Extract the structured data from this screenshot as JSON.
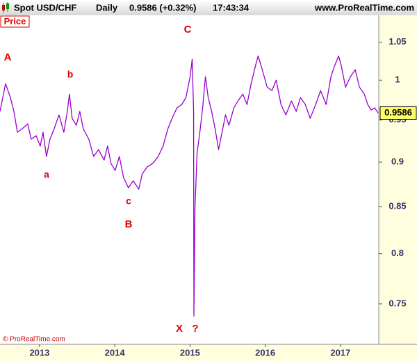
{
  "chart_data": {
    "type": "line",
    "header": {
      "symbol": "Spot USD/CHF",
      "period": "Daily",
      "quote": "0.9586 (+0.32%)",
      "time": "17:43:34",
      "site": "www.ProRealTime.com"
    },
    "panel_label": "Price",
    "copyright": "© ProRealTime.com",
    "annotations": [
      "A",
      "b",
      "a",
      "c",
      "B",
      "C",
      "X",
      "?"
    ],
    "color": "#9900cc",
    "log_scale": true,
    "x": [
      2012.474,
      2012.548,
      2012.612,
      2012.659,
      2012.705,
      2012.769,
      2012.843,
      2012.889,
      2012.954,
      2013.009,
      2013.046,
      2013.092,
      2013.138,
      2013.194,
      2013.258,
      2013.323,
      2013.369,
      2013.397,
      2013.433,
      2013.489,
      2013.535,
      2013.581,
      2013.655,
      2013.719,
      2013.784,
      2013.858,
      2013.904,
      2013.95,
      2014.005,
      2014.061,
      2014.116,
      2014.181,
      2014.245,
      2014.319,
      2014.365,
      2014.43,
      2014.504,
      2014.577,
      2014.642,
      2014.706,
      2014.762,
      2014.826,
      2014.891,
      2014.946,
      2015.002,
      2015.029,
      2015.048,
      2015.052,
      2015.066,
      2015.094,
      2015.131,
      2015.168,
      2015.205,
      2015.242,
      2015.288,
      2015.334,
      2015.38,
      2015.426,
      2015.472,
      2015.518,
      2015.583,
      2015.638,
      2015.703,
      2015.758,
      2015.813,
      2015.869,
      2015.906,
      2015.961,
      2016.026,
      2016.09,
      2016.146,
      2016.21,
      2016.275,
      2016.349,
      2016.413,
      2016.468,
      2016.533,
      2016.598,
      2016.671,
      2016.736,
      2016.81,
      2016.874,
      2016.92,
      2016.976,
      2017.013,
      2017.068,
      2017.133,
      2017.197,
      2017.253,
      2017.317,
      2017.363,
      2017.409,
      2017.456,
      2017.502
    ],
    "values": [
      0.9606,
      0.9955,
      0.9779,
      0.9606,
      0.9352,
      0.9394,
      0.9453,
      0.9269,
      0.9311,
      0.9187,
      0.9352,
      0.9065,
      0.9269,
      0.9394,
      0.9563,
      0.9352,
      0.9606,
      0.9823,
      0.9521,
      0.9436,
      0.9606,
      0.9394,
      0.9269,
      0.9065,
      0.9146,
      0.9024,
      0.9187,
      0.8984,
      0.8904,
      0.9065,
      0.8825,
      0.8708,
      0.8786,
      0.8692,
      0.8864,
      0.8944,
      0.8984,
      0.9065,
      0.9187,
      0.9394,
      0.9521,
      0.9649,
      0.9692,
      0.9779,
      1.0045,
      1.0272,
      0.9606,
      0.7382,
      0.8477,
      0.9105,
      0.9352,
      0.9649,
      1.0045,
      0.9779,
      0.9606,
      0.9394,
      0.9146,
      0.9352,
      0.9563,
      0.9436,
      0.9649,
      0.9736,
      0.9823,
      0.9692,
      0.9955,
      1.018,
      1.0317,
      1.0135,
      0.9911,
      0.9867,
      1.0,
      0.9692,
      0.9563,
      0.9736,
      0.9606,
      0.9779,
      0.9692,
      0.9521,
      0.9692,
      0.9867,
      0.9692,
      1.0045,
      1.018,
      1.0317,
      1.018,
      0.9911,
      1.0045,
      1.0135,
      0.9911,
      0.9823,
      0.9692,
      0.9623,
      0.9649,
      0.9586
    ],
    "xlim": [
      2012.474,
      2017.51
    ],
    "xticks": [
      2013,
      2014,
      2015,
      2016,
      2017
    ],
    "ylim": [
      0.712,
      1.087
    ],
    "yticks": [
      0.75,
      0.8,
      0.85,
      0.9,
      0.95,
      1,
      1.05
    ]
  }
}
